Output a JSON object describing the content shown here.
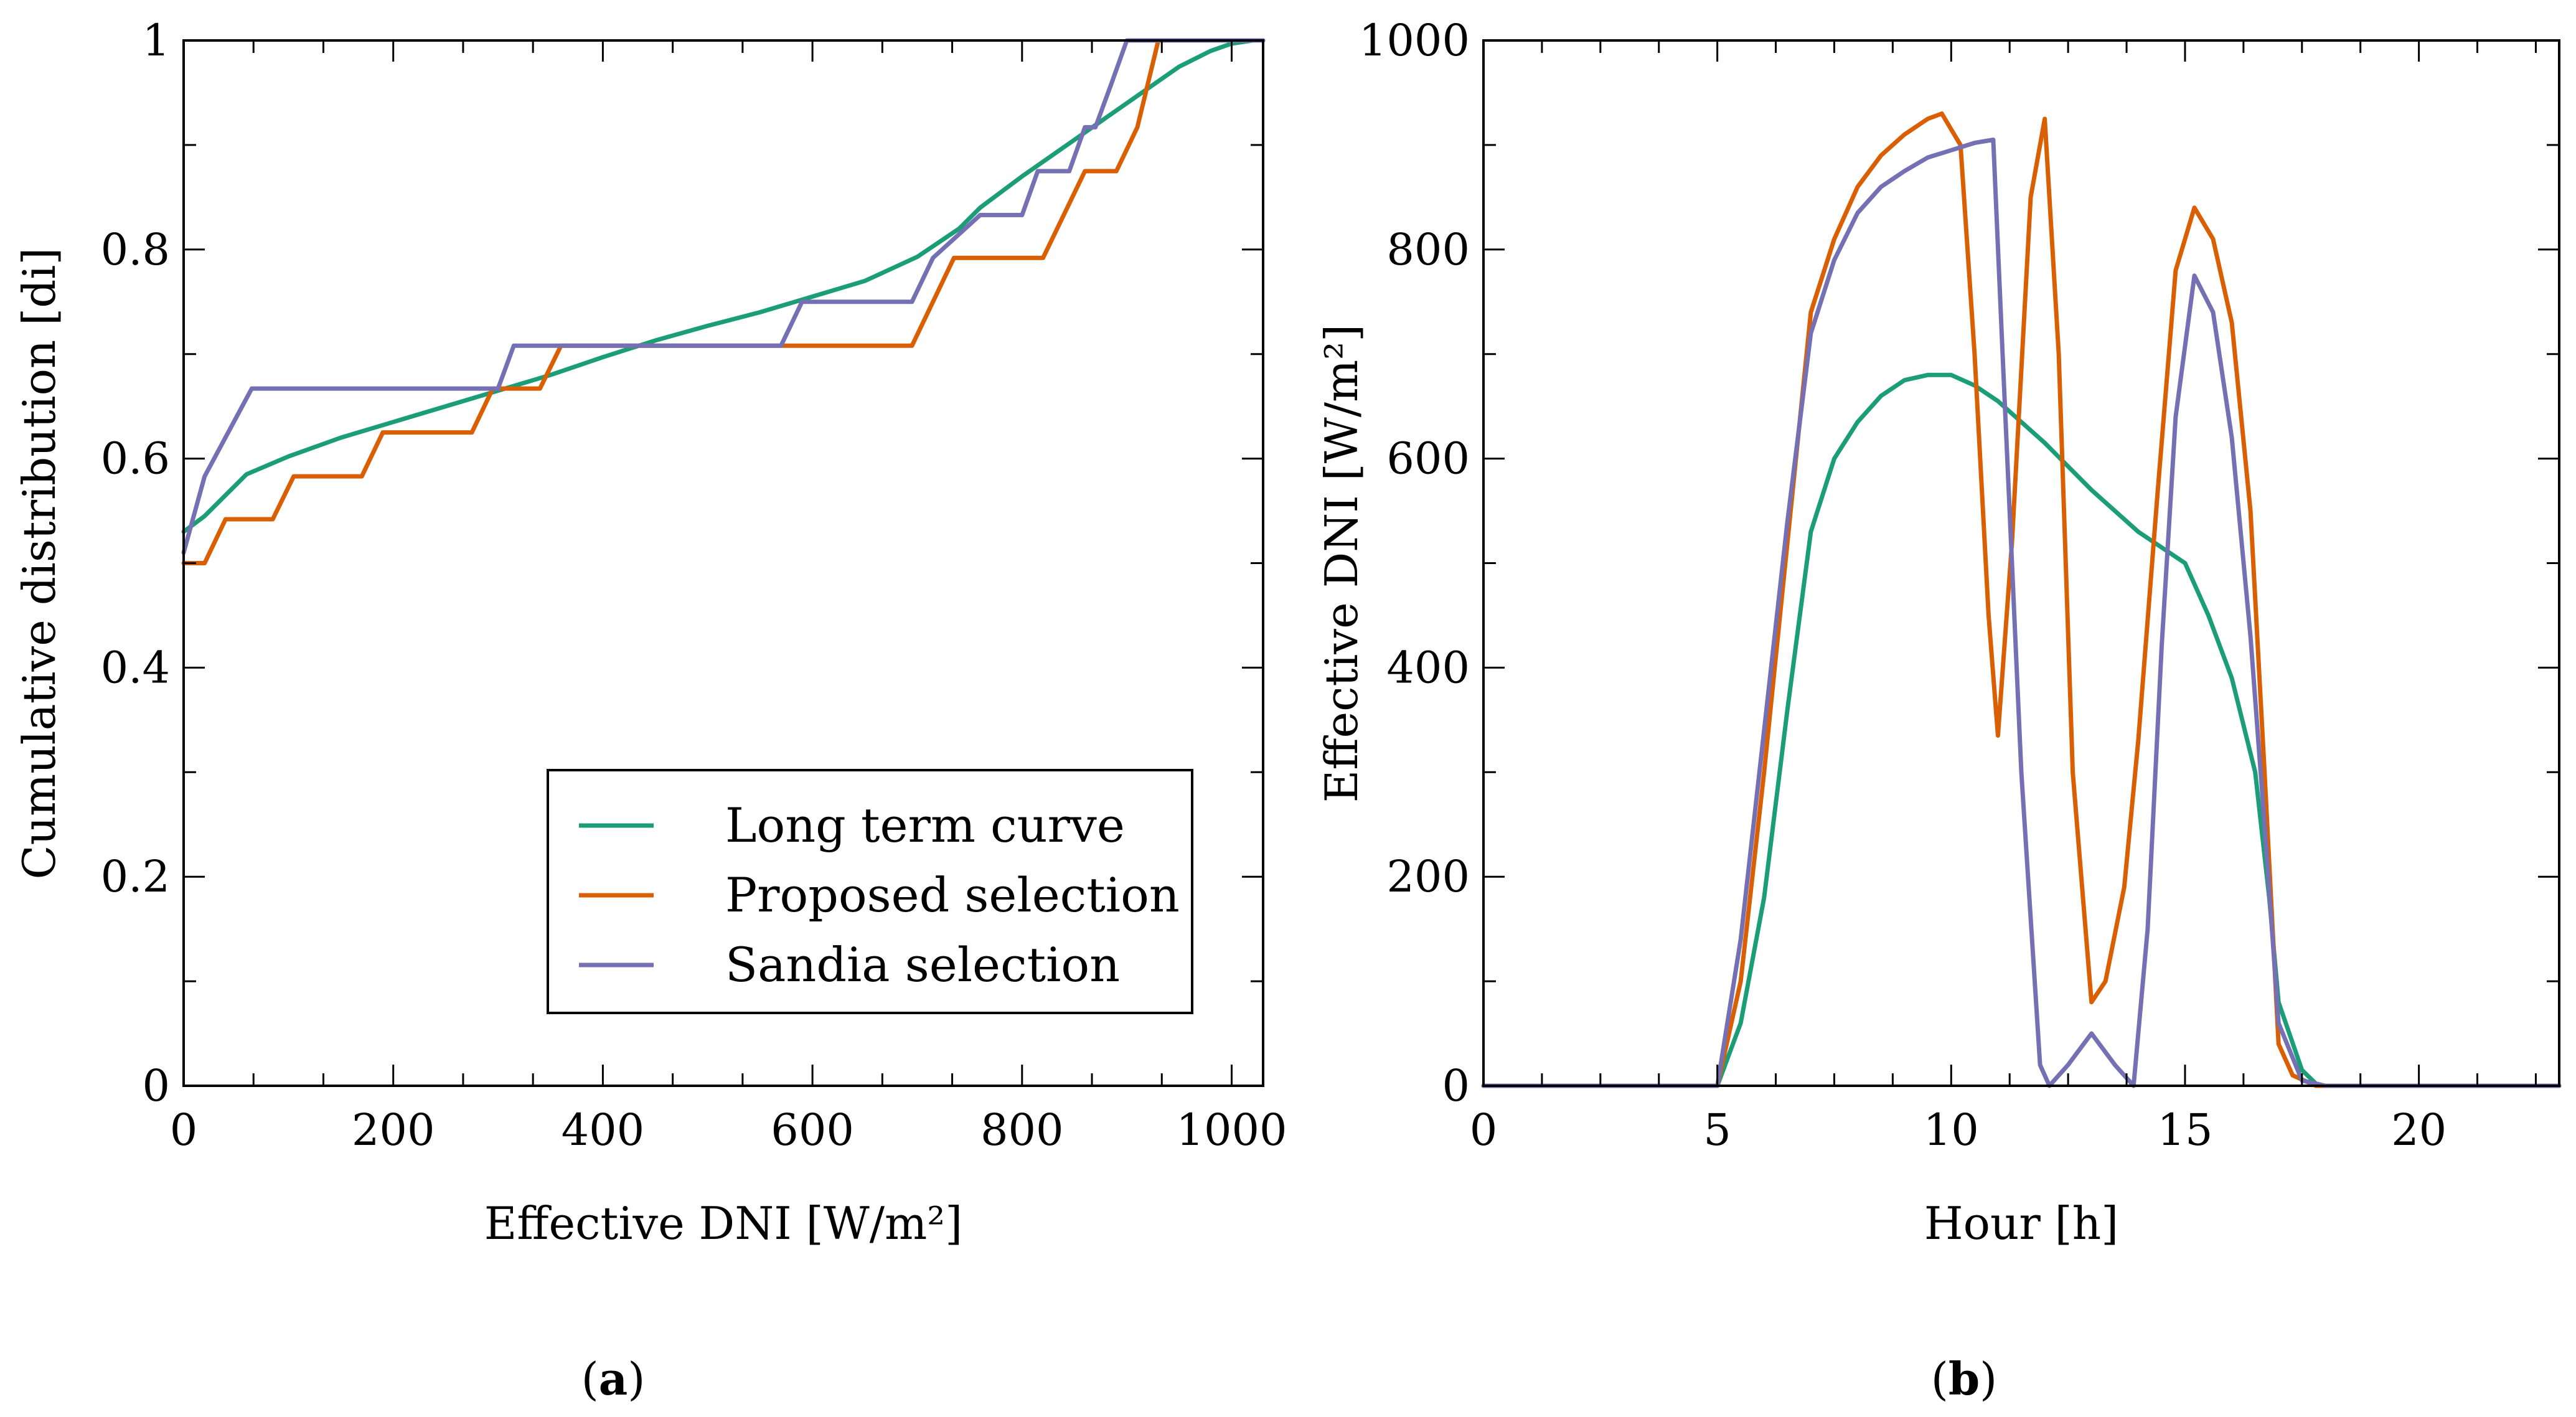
{
  "chart_data": [
    {
      "type": "line",
      "panel_label": "a",
      "xlabel": "Effective DNI [W/m²]",
      "ylabel": "Cumulative distribution [di]",
      "xlim": [
        0,
        1030
      ],
      "ylim": [
        0,
        1
      ],
      "xticks": [
        0,
        200,
        400,
        600,
        800,
        1000
      ],
      "yticks": [
        0,
        0.2,
        0.4,
        0.6,
        0.8,
        1
      ],
      "ytick_labels": [
        "0",
        "0.2",
        "0.4",
        "0.6",
        "0.8",
        "1"
      ],
      "legend": {
        "placement": "center-bottom",
        "entries": [
          "Long term curve",
          "Proposed selection",
          "Sandia selection"
        ]
      },
      "series": [
        {
          "name": "Long term curve",
          "color": "#1b9e77",
          "x": [
            0,
            20,
            40,
            60,
            100,
            150,
            200,
            300,
            350,
            400,
            450,
            500,
            550,
            600,
            650,
            700,
            740,
            760,
            800,
            850,
            900,
            950,
            980,
            1000,
            1020,
            1030
          ],
          "y": [
            0.53,
            0.545,
            0.565,
            0.585,
            0.602,
            0.62,
            0.635,
            0.665,
            0.68,
            0.697,
            0.713,
            0.727,
            0.74,
            0.755,
            0.77,
            0.793,
            0.82,
            0.84,
            0.87,
            0.905,
            0.94,
            0.975,
            0.99,
            0.997,
            1.0,
            1.0
          ]
        },
        {
          "name": "Proposed selection",
          "color": "#d95f02",
          "x": [
            0,
            20,
            40,
            85,
            105,
            170,
            190,
            275,
            295,
            340,
            360,
            695,
            735,
            820,
            860,
            875,
            890,
            910,
            930,
            1030
          ],
          "y": [
            0.5,
            0.5,
            0.542,
            0.542,
            0.583,
            0.583,
            0.625,
            0.625,
            0.667,
            0.667,
            0.708,
            0.708,
            0.792,
            0.792,
            0.875,
            0.875,
            0.875,
            0.917,
            1.0,
            1.0
          ]
        },
        {
          "name": "Sandia selection",
          "color": "#7570b3",
          "x": [
            0,
            20,
            65,
            300,
            315,
            570,
            590,
            695,
            715,
            760,
            800,
            815,
            830,
            845,
            860,
            870,
            885,
            900,
            1030
          ],
          "y": [
            0.51,
            0.583,
            0.667,
            0.667,
            0.708,
            0.708,
            0.75,
            0.75,
            0.792,
            0.833,
            0.833,
            0.875,
            0.875,
            0.875,
            0.917,
            0.917,
            0.958,
            1.0,
            1.0
          ]
        }
      ]
    },
    {
      "type": "line",
      "panel_label": "b",
      "xlabel": "Hour [h]",
      "ylabel": "Effective DNI [W/m²]",
      "xlim": [
        0,
        23
      ],
      "ylim": [
        0,
        1000
      ],
      "xticks": [
        0,
        5,
        10,
        15,
        20
      ],
      "yticks": [
        0,
        200,
        400,
        600,
        800,
        1000
      ],
      "ytick_labels": [
        "0",
        "200",
        "400",
        "600",
        "800",
        "1000"
      ],
      "series": [
        {
          "name": "Long term curve",
          "color": "#1b9e77",
          "x": [
            0,
            5,
            5.5,
            6,
            6.5,
            7,
            7.5,
            8,
            8.5,
            9,
            9.5,
            10,
            10.5,
            11,
            12,
            13,
            14,
            15,
            15.5,
            16,
            16.5,
            16.8,
            17,
            17.5,
            17.8,
            18,
            23
          ],
          "y": [
            0,
            0,
            60,
            180,
            360,
            530,
            600,
            635,
            660,
            675,
            680,
            680,
            670,
            655,
            615,
            570,
            530,
            500,
            450,
            390,
            300,
            180,
            80,
            15,
            2,
            0,
            0
          ]
        },
        {
          "name": "Proposed selection",
          "color": "#d95f02",
          "x": [
            0,
            5,
            5.5,
            6,
            6.5,
            7,
            7.5,
            8,
            8.5,
            9,
            9.5,
            9.8,
            10.2,
            10.5,
            10.8,
            11,
            11.3,
            11.7,
            12,
            12.3,
            12.6,
            13,
            13.3,
            13.7,
            14,
            14.4,
            14.8,
            15.2,
            15.6,
            16,
            16.4,
            16.7,
            17,
            17.3,
            17.8,
            23
          ],
          "y": [
            0,
            0,
            100,
            300,
            520,
            740,
            810,
            860,
            890,
            910,
            925,
            930,
            900,
            700,
            450,
            335,
            520,
            850,
            925,
            700,
            300,
            80,
            100,
            190,
            330,
            560,
            780,
            840,
            810,
            730,
            550,
            300,
            40,
            10,
            0,
            0
          ]
        },
        {
          "name": "Sandia selection",
          "color": "#7570b3",
          "x": [
            0,
            5,
            5.5,
            6,
            6.5,
            7,
            7.5,
            8,
            8.5,
            9,
            9.5,
            10,
            10.5,
            10.9,
            11.1,
            11.5,
            11.9,
            12.1,
            12.5,
            13,
            13.5,
            13.9,
            14.2,
            14.5,
            14.8,
            15.2,
            15.6,
            16,
            16.4,
            16.7,
            17,
            17.5,
            18,
            23
          ],
          "y": [
            0,
            0,
            140,
            340,
            540,
            720,
            790,
            835,
            860,
            875,
            888,
            895,
            902,
            905,
            700,
            300,
            20,
            0,
            20,
            50,
            20,
            0,
            150,
            420,
            640,
            775,
            740,
            620,
            430,
            250,
            60,
            5,
            0,
            0
          ]
        }
      ]
    }
  ]
}
